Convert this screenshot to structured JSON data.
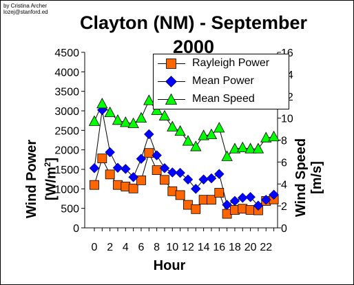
{
  "credit": {
    "line1": "by Cristina Archer",
    "line2": "lozej@stanford.ed"
  },
  "chart_data": {
    "type": "line",
    "title": "Clayton (NM) - September 2000",
    "title_line1": "Clayton (NM) - September",
    "title_line2": "2000",
    "xlabel": "Hour",
    "ylabel_left_line1": "Wind Power",
    "ylabel_left_line2": "[W/m",
    "ylabel_left_sup": "2",
    "ylabel_left_end": "]",
    "ylabel_right_line1": "Wind Speed",
    "ylabel_right_line2": "[m/s]",
    "x": [
      0,
      1,
      2,
      3,
      4,
      5,
      6,
      7,
      8,
      9,
      10,
      11,
      12,
      13,
      14,
      15,
      16,
      17,
      18,
      19,
      20,
      21,
      22,
      23
    ],
    "xticks": [
      0,
      2,
      4,
      6,
      8,
      10,
      12,
      14,
      16,
      18,
      20,
      22
    ],
    "ylim_left": [
      0,
      4500
    ],
    "yticks_left": [
      0,
      500,
      1000,
      1500,
      2000,
      2500,
      3000,
      3500,
      4000,
      4500
    ],
    "ylim_right": [
      0,
      16
    ],
    "yticks_right": [
      0,
      2,
      4,
      6,
      8,
      10,
      12,
      14,
      16
    ],
    "legend_position": "top-right",
    "grid": false,
    "series": [
      {
        "name": "Rayleigh Power",
        "axis": "left",
        "marker": "square",
        "color": "#ff6600",
        "values": [
          1100,
          1780,
          1370,
          1100,
          1060,
          1010,
          1220,
          1920,
          1480,
          1230,
          940,
          840,
          590,
          480,
          720,
          720,
          900,
          360,
          460,
          490,
          460,
          450,
          690,
          730
        ]
      },
      {
        "name": "Mean Power",
        "axis": "left",
        "marker": "diamond",
        "color": "#0000ff",
        "values": [
          1530,
          3020,
          1940,
          1540,
          1510,
          1300,
          1770,
          2400,
          1860,
          1530,
          1420,
          1410,
          1240,
          1000,
          1240,
          1270,
          1380,
          590,
          690,
          770,
          790,
          570,
          720,
          850
        ]
      },
      {
        "name": "Mean Speed",
        "axis": "right",
        "marker": "triangle",
        "color": "#00ff00",
        "values": [
          9.7,
          11.3,
          10.5,
          9.8,
          9.6,
          9.5,
          10.0,
          11.6,
          10.7,
          10.2,
          9.2,
          8.8,
          7.9,
          7.4,
          8.4,
          8.5,
          9.1,
          6.5,
          7.2,
          7.3,
          7.2,
          7.2,
          8.2,
          8.3
        ]
      }
    ]
  }
}
